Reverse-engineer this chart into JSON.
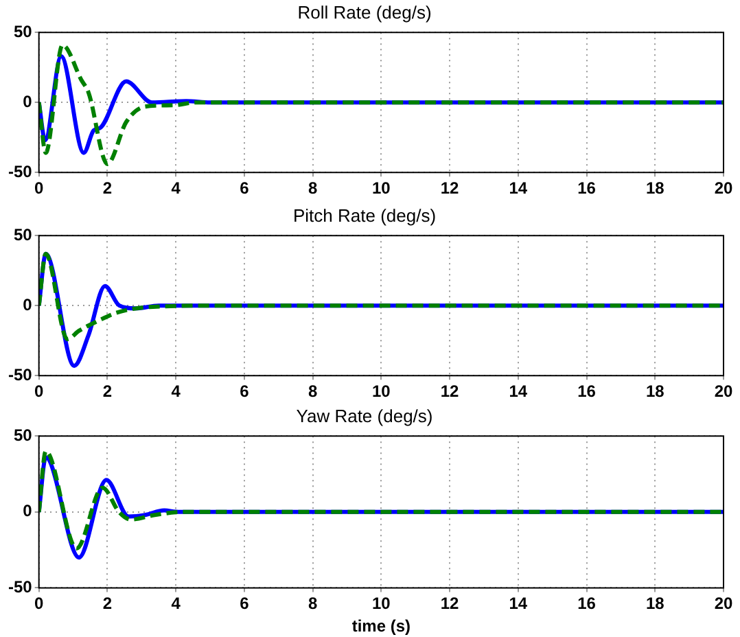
{
  "chart_data": [
    {
      "type": "line",
      "title": "Roll Rate (deg/s)",
      "xlim": [
        0,
        20
      ],
      "xticks": [
        0,
        2,
        4,
        6,
        8,
        10,
        12,
        14,
        16,
        18,
        20
      ],
      "ylim": [
        -50,
        50
      ],
      "yticks": [
        -50,
        0,
        50
      ],
      "grid": true,
      "legend": false,
      "marker": "none",
      "series": [
        {
          "color": "#0000ff",
          "line_style": "solid",
          "x": [
            0,
            0.18,
            0.65,
            1.31,
            1.6,
            1.8,
            2.55,
            3.3,
            4.3,
            5,
            20
          ],
          "values": [
            0,
            -27,
            33,
            -36,
            -20,
            -18,
            15,
            0,
            1,
            0,
            0
          ]
        },
        {
          "color": "#008000",
          "line_style": "dashed",
          "x": [
            0,
            0.2,
            0.69,
            1.24,
            1.45,
            2.0,
            2.55,
            3.1,
            3.93,
            4.6,
            20
          ],
          "values": [
            0,
            -36,
            41,
            16,
            7,
            -44,
            -14,
            -3,
            -2,
            0,
            0
          ]
        }
      ]
    },
    {
      "type": "line",
      "title": "Pitch Rate (deg/s)",
      "xlim": [
        0,
        20
      ],
      "xticks": [
        0,
        2,
        4,
        6,
        8,
        10,
        12,
        14,
        16,
        18,
        20
      ],
      "ylim": [
        -50,
        50
      ],
      "yticks": [
        -50,
        0,
        50
      ],
      "grid": true,
      "legend": false,
      "marker": "none",
      "series": [
        {
          "color": "#0000ff",
          "line_style": "solid",
          "x": [
            0,
            0.2,
            1.03,
            1.45,
            1.93,
            2.35,
            2.83,
            3.5,
            20
          ],
          "values": [
            0,
            37,
            -43,
            -21,
            14,
            0,
            -2,
            0,
            0
          ]
        },
        {
          "color": "#008000",
          "line_style": "dashed",
          "x": [
            0,
            0.2,
            0.83,
            1.17,
            1.72,
            2.28,
            3.24,
            5.3,
            20
          ],
          "values": [
            0,
            37,
            -24,
            -18,
            -11,
            -5,
            -1,
            0,
            0
          ]
        }
      ]
    },
    {
      "type": "line",
      "title": "Yaw Rate (deg/s)",
      "xlabel": "time (s)",
      "xlim": [
        0,
        20
      ],
      "xticks": [
        0,
        2,
        4,
        6,
        8,
        10,
        12,
        14,
        16,
        18,
        20
      ],
      "ylim": [
        -50,
        50
      ],
      "yticks": [
        -50,
        0,
        50
      ],
      "grid": true,
      "legend": false,
      "marker": "none",
      "series": [
        {
          "color": "#0000ff",
          "line_style": "solid",
          "x": [
            0,
            0.2,
            1.17,
            1.97,
            2.62,
            3.1,
            3.66,
            4.07,
            20
          ],
          "values": [
            0,
            36,
            -30,
            21,
            -3,
            -2,
            1,
            0,
            0
          ]
        },
        {
          "color": "#008000",
          "line_style": "dashed",
          "x": [
            0,
            0.2,
            1.1,
            1.86,
            2.34,
            2.69,
            3.38,
            4.2,
            20
          ],
          "values": [
            0,
            40,
            -24,
            16,
            0,
            -5,
            -2,
            0,
            0
          ]
        }
      ]
    }
  ]
}
